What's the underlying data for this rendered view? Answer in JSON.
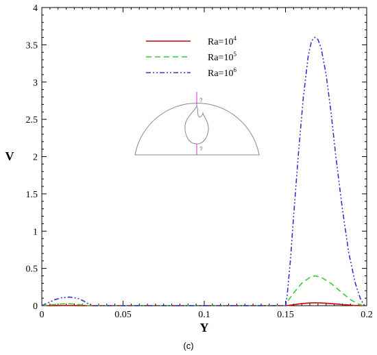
{
  "caption": "(c)",
  "chart_data": {
    "type": "line",
    "title": "",
    "xlabel": "Y",
    "ylabel": "V",
    "xlim": [
      0,
      0.2
    ],
    "ylim": [
      0,
      4
    ],
    "xticks": [
      "0",
      "0.05",
      "0.1",
      "0.15",
      "0.2"
    ],
    "yticks": [
      "0",
      "0.5",
      "1",
      "1.5",
      "2",
      "2.5",
      "3",
      "3.5",
      "4"
    ],
    "grid": false,
    "legend_position": "top-center",
    "series": [
      {
        "name_base": "Ra=10",
        "name_exp": "4",
        "color": "#cc0000",
        "dash": "solid",
        "points": [
          [
            0,
            0
          ],
          [
            0.005,
            0.001
          ],
          [
            0.015,
            0.003
          ],
          [
            0.025,
            0.001
          ],
          [
            0.03,
            0
          ],
          [
            0.15,
            0
          ],
          [
            0.155,
            0.012
          ],
          [
            0.16,
            0.028
          ],
          [
            0.165,
            0.036
          ],
          [
            0.168,
            0.038
          ],
          [
            0.172,
            0.036
          ],
          [
            0.178,
            0.028
          ],
          [
            0.185,
            0.015
          ],
          [
            0.192,
            0.004
          ],
          [
            0.198,
            0
          ]
        ]
      },
      {
        "name_base": "Ra=10",
        "name_exp": "5",
        "color": "#33cc33",
        "dash": "dashed",
        "points": [
          [
            0,
            0
          ],
          [
            0.005,
            0.01
          ],
          [
            0.01,
            0.02
          ],
          [
            0.015,
            0.027
          ],
          [
            0.02,
            0.022
          ],
          [
            0.025,
            0.01
          ],
          [
            0.03,
            0
          ],
          [
            0.15,
            0
          ],
          [
            0.152,
            0.08
          ],
          [
            0.155,
            0.17
          ],
          [
            0.16,
            0.3
          ],
          [
            0.165,
            0.38
          ],
          [
            0.168,
            0.4
          ],
          [
            0.172,
            0.38
          ],
          [
            0.178,
            0.3
          ],
          [
            0.185,
            0.17
          ],
          [
            0.19,
            0.08
          ],
          [
            0.195,
            0.02
          ],
          [
            0.198,
            0
          ]
        ]
      },
      {
        "name_base": "Ra=10",
        "name_exp": "6",
        "color": "#3333cc",
        "dash": "dashdotdot",
        "points": [
          [
            0,
            0
          ],
          [
            0.004,
            0.04
          ],
          [
            0.008,
            0.08
          ],
          [
            0.012,
            0.105
          ],
          [
            0.017,
            0.115
          ],
          [
            0.022,
            0.1
          ],
          [
            0.026,
            0.06
          ],
          [
            0.029,
            0.02
          ],
          [
            0.031,
            0
          ],
          [
            0.15,
            0
          ],
          [
            0.151,
            0.13
          ],
          [
            0.153,
            0.6
          ],
          [
            0.155,
            1.2
          ],
          [
            0.158,
            2.05
          ],
          [
            0.161,
            2.8
          ],
          [
            0.164,
            3.35
          ],
          [
            0.166,
            3.55
          ],
          [
            0.168,
            3.6
          ],
          [
            0.17,
            3.57
          ],
          [
            0.172,
            3.45
          ],
          [
            0.175,
            3.1
          ],
          [
            0.178,
            2.6
          ],
          [
            0.181,
            2.0
          ],
          [
            0.185,
            1.3
          ],
          [
            0.189,
            0.7
          ],
          [
            0.193,
            0.3
          ],
          [
            0.196,
            0.1
          ],
          [
            0.198,
            0.02
          ],
          [
            0.199,
            0
          ]
        ]
      }
    ],
    "inset": {
      "marker_text": "?"
    }
  }
}
